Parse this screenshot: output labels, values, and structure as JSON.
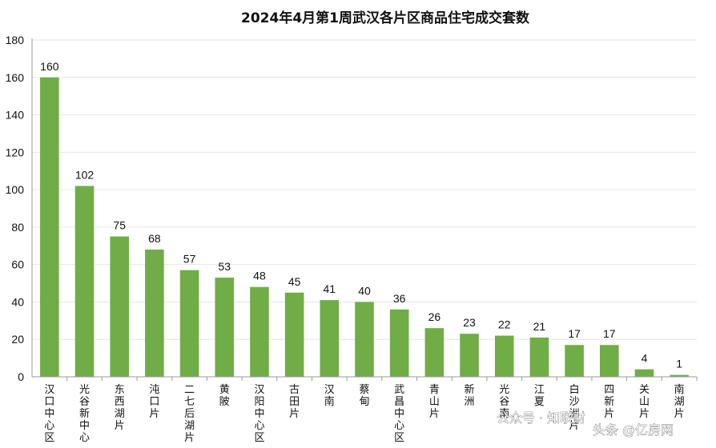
{
  "chart_data": {
    "type": "bar",
    "title": "2024年4月第1周武汉各片区商品住宅成交套数",
    "categories": [
      "汉口中心区",
      "光谷新中心",
      "东西湖片",
      "沌口片",
      "二七后湖片",
      "黄陂",
      "汉阳中心区",
      "古田片",
      "汉南",
      "蔡甸",
      "武昌中心区",
      "青山片",
      "新洲",
      "光谷南",
      "江夏",
      "白沙洲片",
      "四新片",
      "关山片",
      "南湖片"
    ],
    "values": [
      160,
      102,
      75,
      68,
      57,
      53,
      48,
      45,
      41,
      40,
      36,
      26,
      23,
      22,
      21,
      17,
      17,
      4,
      1
    ],
    "ylim": [
      0,
      180
    ],
    "yticks": [
      0,
      20,
      40,
      60,
      80,
      100,
      120,
      140,
      160,
      180
    ],
    "bar_color": "#70ad47",
    "grid": true,
    "legend": "none"
  },
  "watermark": {
    "left_text": "公众号 · 知联财",
    "right_text": "头条 @亿房网"
  }
}
